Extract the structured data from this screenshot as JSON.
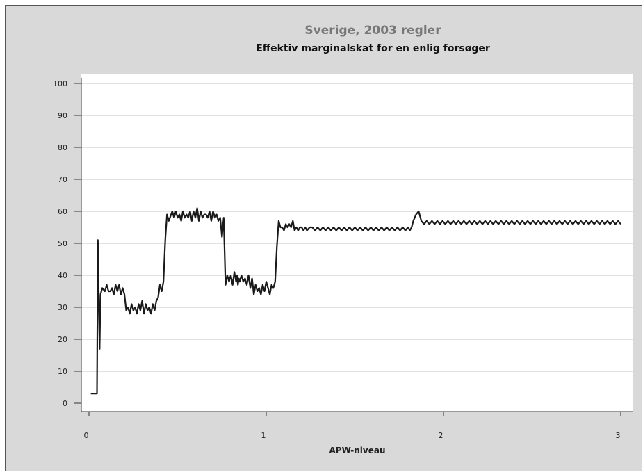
{
  "chart_data": {
    "type": "line",
    "title": "Sverige, 2003 regler",
    "subtitle": "Effektiv marginalskat for en enlig forsøger",
    "xlabel": "APW-niveau",
    "ylabel": "",
    "xlim": [
      0,
      3
    ],
    "ylim": [
      0,
      100
    ],
    "x_ticks": [
      0,
      1,
      2,
      3
    ],
    "y_ticks": [
      0,
      10,
      20,
      30,
      40,
      50,
      60,
      70,
      80,
      90,
      100
    ],
    "grid": "horizontal",
    "legend": "none",
    "series": [
      {
        "x": [
          0.01,
          0.045,
          0.05,
          0.06,
          0.065,
          0.075,
          0.09,
          0.1,
          0.11,
          0.12,
          0.13,
          0.14,
          0.15,
          0.16,
          0.17,
          0.18,
          0.19,
          0.2,
          0.21,
          0.22,
          0.23,
          0.24,
          0.25,
          0.26,
          0.27,
          0.28,
          0.29,
          0.3,
          0.31,
          0.32,
          0.33,
          0.34,
          0.35,
          0.36,
          0.37,
          0.38,
          0.39,
          0.4,
          0.41,
          0.42,
          0.43,
          0.44,
          0.45,
          0.47,
          0.48,
          0.49,
          0.5,
          0.51,
          0.52,
          0.53,
          0.54,
          0.55,
          0.56,
          0.57,
          0.58,
          0.59,
          0.6,
          0.61,
          0.62,
          0.63,
          0.64,
          0.65,
          0.66,
          0.67,
          0.68,
          0.69,
          0.7,
          0.71,
          0.72,
          0.73,
          0.74,
          0.75,
          0.76,
          0.77,
          0.78,
          0.79,
          0.8,
          0.81,
          0.82,
          0.83,
          0.835,
          0.84,
          0.845,
          0.85,
          0.86,
          0.87,
          0.88,
          0.89,
          0.9,
          0.91,
          0.92,
          0.93,
          0.94,
          0.95,
          0.96,
          0.97,
          0.98,
          0.99,
          1.0,
          1.01,
          1.02,
          1.03,
          1.04,
          1.05,
          1.06,
          1.07,
          1.08,
          1.09,
          1.1,
          1.11,
          1.12,
          1.13,
          1.14,
          1.15,
          1.16,
          1.17,
          1.18,
          1.19,
          1.2,
          1.21,
          1.22,
          1.23,
          1.245,
          1.26,
          1.275,
          1.29,
          1.305,
          1.32,
          1.335,
          1.35,
          1.365,
          1.38,
          1.395,
          1.41,
          1.425,
          1.44,
          1.455,
          1.47,
          1.485,
          1.5,
          1.515,
          1.53,
          1.545,
          1.56,
          1.575,
          1.59,
          1.605,
          1.62,
          1.635,
          1.65,
          1.665,
          1.68,
          1.695,
          1.71,
          1.725,
          1.74,
          1.755,
          1.77,
          1.785,
          1.8,
          1.81,
          1.82,
          1.83,
          1.845,
          1.86,
          1.875,
          1.89,
          1.905,
          1.92,
          1.935,
          1.95,
          1.965,
          1.98,
          1.995,
          2.01,
          2.025,
          2.04,
          2.055,
          2.07,
          2.085,
          2.1,
          2.115,
          2.13,
          2.145,
          2.16,
          2.175,
          2.19,
          2.205,
          2.22,
          2.235,
          2.25,
          2.265,
          2.28,
          2.295,
          2.31,
          2.325,
          2.34,
          2.355,
          2.37,
          2.385,
          2.4,
          2.415,
          2.43,
          2.445,
          2.46,
          2.475,
          2.49,
          2.505,
          2.52,
          2.535,
          2.55,
          2.565,
          2.58,
          2.595,
          2.61,
          2.625,
          2.64,
          2.655,
          2.67,
          2.685,
          2.7,
          2.715,
          2.73,
          2.745,
          2.76,
          2.775,
          2.79,
          2.805,
          2.82,
          2.835,
          2.85,
          2.865,
          2.88,
          2.895,
          2.91,
          2.925,
          2.94,
          2.955,
          2.97,
          2.985,
          3.0
        ],
        "values": [
          3,
          3,
          51,
          17,
          34,
          36,
          35,
          37,
          35,
          35,
          36,
          34,
          37,
          35,
          37,
          34,
          36,
          34,
          29,
          30,
          28,
          31,
          29,
          30,
          28,
          31,
          29,
          32,
          28,
          31,
          29,
          30,
          28,
          31,
          29,
          32,
          33,
          37,
          35,
          38,
          51,
          59,
          57,
          60,
          58,
          60,
          58,
          59,
          57,
          60,
          58,
          59,
          58,
          60,
          57,
          60,
          58,
          61,
          57,
          60,
          58,
          59,
          59,
          58,
          60,
          57,
          60,
          58,
          59,
          57,
          58,
          52,
          58,
          37,
          40,
          38,
          40,
          37,
          41,
          38,
          40,
          37,
          39,
          38,
          40,
          38,
          39,
          37,
          40,
          36,
          39,
          34,
          37,
          35,
          36,
          34,
          37,
          35,
          38,
          36,
          34,
          37,
          36,
          38,
          49,
          57,
          55,
          55,
          54,
          56,
          55,
          56,
          55,
          57,
          54,
          55,
          54,
          55,
          55,
          54,
          55,
          54,
          55,
          55,
          54,
          55,
          54,
          55,
          54,
          55,
          54,
          55,
          54,
          55,
          54,
          55,
          54,
          55,
          54,
          55,
          54,
          55,
          54,
          55,
          54,
          55,
          54,
          55,
          54,
          55,
          54,
          55,
          54,
          55,
          54,
          55,
          54,
          55,
          54,
          55,
          54,
          55,
          57,
          59,
          60,
          57,
          56,
          57,
          56,
          57,
          56,
          57,
          56,
          57,
          56,
          57,
          56,
          57,
          56,
          57,
          56,
          57,
          56,
          57,
          56,
          57,
          56,
          57,
          56,
          57,
          56,
          57,
          56,
          57,
          56,
          57,
          56,
          57,
          56,
          57,
          56,
          57,
          56,
          57,
          56,
          57,
          56,
          57,
          56,
          57,
          56,
          57,
          56,
          57,
          56,
          57,
          56,
          57,
          56,
          57,
          56,
          57,
          56,
          57,
          56,
          57,
          56,
          57,
          56,
          57,
          56,
          57,
          56,
          57,
          56,
          57,
          56,
          57,
          56,
          57,
          56
        ]
      }
    ]
  },
  "colors": {
    "frame_background": "#d9d9d9",
    "plot_background": "#ffffff",
    "gridline": "#d0d0d0",
    "series_line": "#1a1a1a",
    "title": "#777777",
    "subtitle": "#111111"
  }
}
